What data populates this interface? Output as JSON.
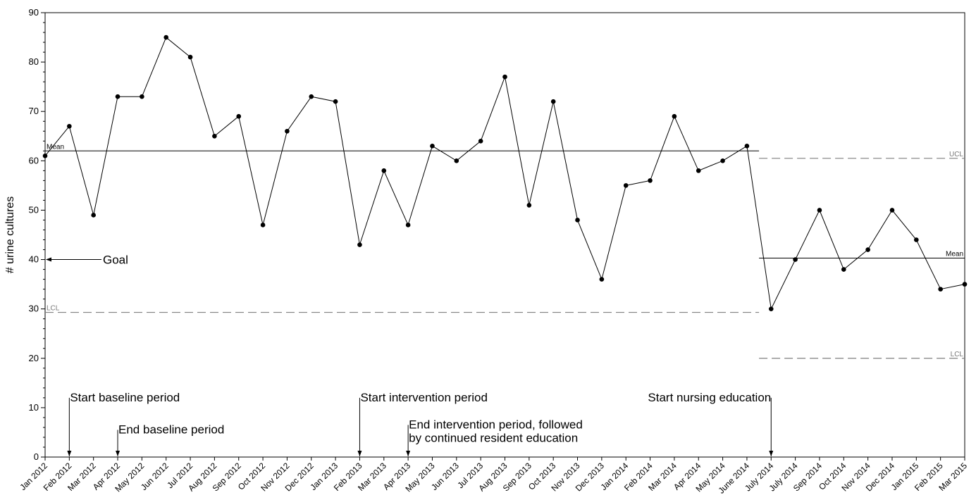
{
  "chart_data": {
    "type": "line",
    "title": "",
    "xlabel": "",
    "ylabel": "# urine cultures",
    "ylim": [
      0,
      90
    ],
    "yticks": [
      0,
      10,
      20,
      30,
      40,
      50,
      60,
      70,
      80,
      90
    ],
    "grid": false,
    "categories": [
      "Jan 2012",
      "Feb 2012",
      "Mar 2012",
      "Apr 2012",
      "May 2012",
      "Jun 2012",
      "Jul 2012",
      "Aug 2012",
      "Sep 2012",
      "Oct 2012",
      "Nov 2012",
      "Dec 2012",
      "Jan 2013",
      "Feb 2013",
      "Mar 2013",
      "Apr 2013",
      "May 2013",
      "Jun 2013",
      "Jul 2013",
      "Aug 2013",
      "Sep 2013",
      "Oct 2013",
      "Nov 2013",
      "Dec 2013",
      "Jan 2014",
      "Feb 2014",
      "Mar 2014",
      "Apr 2014",
      "May 2014",
      "June 2014",
      "July 2014",
      "July 2014",
      "Sep 2014",
      "Oct 2014",
      "Nov 2014",
      "Dec 2014",
      "Jan 2015",
      "Feb 2015",
      "Mar 2015"
    ],
    "series": [
      {
        "values": [
          61,
          67,
          49,
          73,
          73,
          85,
          81,
          65,
          69,
          47,
          66,
          73,
          72,
          43,
          58,
          47,
          63,
          60,
          64,
          77,
          51,
          72,
          48,
          36,
          55,
          56,
          69,
          58,
          60,
          63,
          30,
          40,
          50,
          38,
          42,
          50,
          44,
          34,
          35
        ]
      }
    ],
    "reference_lines": [
      {
        "label": "Mean",
        "value": 62,
        "from_index": 0,
        "to_index": 29.5,
        "style": "solid"
      },
      {
        "label": "LCL",
        "value": 29.3,
        "from_index": 0,
        "to_index": 29.5,
        "style": "dashed"
      },
      {
        "label": "UCL",
        "value": 60.5,
        "from_index": 29.5,
        "to_index": 38,
        "style": "dashed"
      },
      {
        "label": "Mean",
        "value": 40.3,
        "from_index": 29.5,
        "to_index": 38,
        "style": "solid"
      },
      {
        "label": "LCL",
        "value": 20,
        "from_index": 29.5,
        "to_index": 38,
        "style": "dashed"
      }
    ],
    "annotations": [
      {
        "text": [
          "Goal"
        ],
        "y_value": 40
      },
      {
        "text": [
          "Start baseline period"
        ],
        "x_index": 1,
        "y_value": 12
      },
      {
        "text": [
          "End baseline period"
        ],
        "x_index": 3,
        "y_value": 5.5
      },
      {
        "text": [
          "Start intervention period"
        ],
        "x_index": 13,
        "y_value": 12
      },
      {
        "text": [
          "End intervention period, followed",
          "by continued resident education"
        ],
        "x_index": 15,
        "y_value": 6.5
      },
      {
        "text": [
          "Start nursing education"
        ],
        "x_index": 30,
        "y_value": 12
      }
    ]
  }
}
